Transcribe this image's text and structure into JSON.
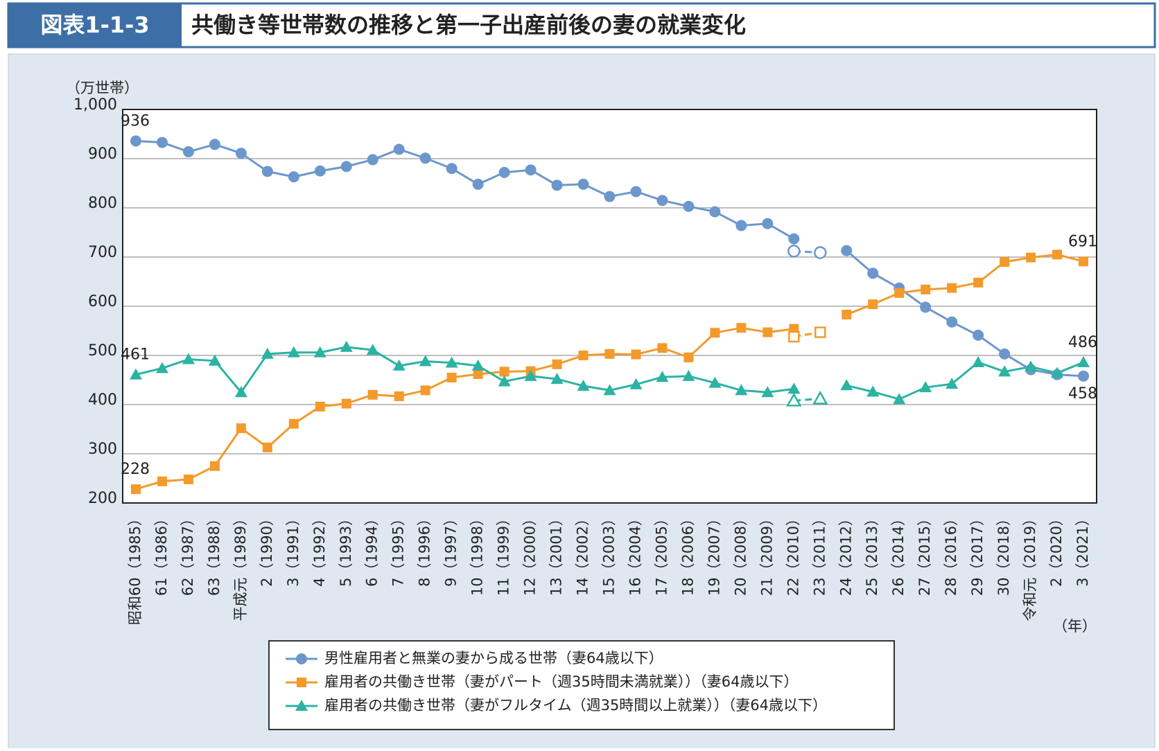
{
  "header": {
    "figure_number": "図表1-1-3",
    "title": "共働き等世帯数の推移と第一子出産前後の妻の就業変化"
  },
  "chart_data": {
    "type": "line",
    "y_label": "（万世帯）",
    "x_label": "（年）",
    "categories": [
      "昭和60（1985）",
      "61（1986）",
      "62（1987）",
      "63（1988）",
      "平成元（1989）",
      "2（1990）",
      "3（1991）",
      "4（1992）",
      "5（1993）",
      "6（1994）",
      "7（1995）",
      "8（1996）",
      "9（1997）",
      "10（1998）",
      "11（1999）",
      "12（2000）",
      "13（2001）",
      "14（2002）",
      "15（2003）",
      "16（2004）",
      "17（2005）",
      "18（2006）",
      "19（2007）",
      "20（2008）",
      "21（2009）",
      "22（2010）",
      "23（2011）",
      "24（2012）",
      "25（2013）",
      "26（2014）",
      "27（2015）",
      "28（2016）",
      "29（2017）",
      "30（2018）",
      "令和元（2019）",
      "2（2020）",
      "3（2021）"
    ],
    "ylim": [
      200,
      1000
    ],
    "yticks": [
      200,
      300,
      400,
      500,
      600,
      700,
      800,
      900,
      {
        "value": 1000,
        "label": "1,000"
      }
    ],
    "grid": true,
    "series": [
      {
        "name": "男性雇用者と無業の妻から成る世帯（妻64歳以下）",
        "color": "#6c97cd",
        "marker": "circle",
        "values": [
          936,
          933,
          914,
          929,
          911,
          874,
          863,
          875,
          884,
          898,
          919,
          901,
          880,
          848,
          872,
          877,
          846,
          848,
          823,
          833,
          815,
          803,
          792,
          764,
          768,
          737,
          null,
          713,
          667,
          637,
          598,
          568,
          541,
          503,
          471,
          461,
          458
        ]
      },
      {
        "name": "雇用者の共働き世帯（妻がパート（週35時間未満就業））（妻64歳以下）",
        "color": "#f39a2b",
        "marker": "square",
        "values": [
          228,
          244,
          248,
          275,
          352,
          313,
          361,
          396,
          402,
          420,
          417,
          429,
          455,
          462,
          467,
          468,
          482,
          500,
          503,
          502,
          515,
          496,
          546,
          556,
          547,
          554,
          null,
          583,
          604,
          627,
          634,
          637,
          648,
          690,
          699,
          705,
          691
        ]
      },
      {
        "name": "雇用者の共働き世帯（妻がフルタイム（週35時間以上就業））（妻64歳以下）",
        "color": "#2bb3a3",
        "marker": "triangle",
        "values": [
          461,
          474,
          492,
          489,
          425,
          503,
          506,
          506,
          517,
          511,
          479,
          488,
          485,
          479,
          447,
          458,
          452,
          438,
          429,
          441,
          456,
          458,
          444,
          429,
          425,
          432,
          null,
          439,
          426,
          411,
          435,
          442,
          486,
          467,
          477,
          464,
          486
        ]
      },
      {
        "color": "#6c97cd",
        "marker": "circle",
        "hollow": true,
        "dashed": true,
        "values": [
          null,
          null,
          null,
          null,
          null,
          null,
          null,
          null,
          null,
          null,
          null,
          null,
          null,
          null,
          null,
          null,
          null,
          null,
          null,
          null,
          null,
          null,
          null,
          null,
          null,
          712,
          709,
          null,
          null,
          null,
          null,
          null,
          null,
          null,
          null,
          null,
          null
        ]
      },
      {
        "color": "#f39a2b",
        "marker": "square",
        "hollow": true,
        "dashed": true,
        "values": [
          null,
          null,
          null,
          null,
          null,
          null,
          null,
          null,
          null,
          null,
          null,
          null,
          null,
          null,
          null,
          null,
          null,
          null,
          null,
          null,
          null,
          null,
          null,
          null,
          null,
          538,
          547,
          null,
          null,
          null,
          null,
          null,
          null,
          null,
          null,
          null,
          null
        ]
      },
      {
        "color": "#2bb3a3",
        "marker": "triangle",
        "hollow": true,
        "dashed": true,
        "values": [
          null,
          null,
          null,
          null,
          null,
          null,
          null,
          null,
          null,
          null,
          null,
          null,
          null,
          null,
          null,
          null,
          null,
          null,
          null,
          null,
          null,
          null,
          null,
          null,
          null,
          408,
          412,
          null,
          null,
          null,
          null,
          null,
          null,
          null,
          null,
          null,
          null
        ]
      }
    ]
  }
}
